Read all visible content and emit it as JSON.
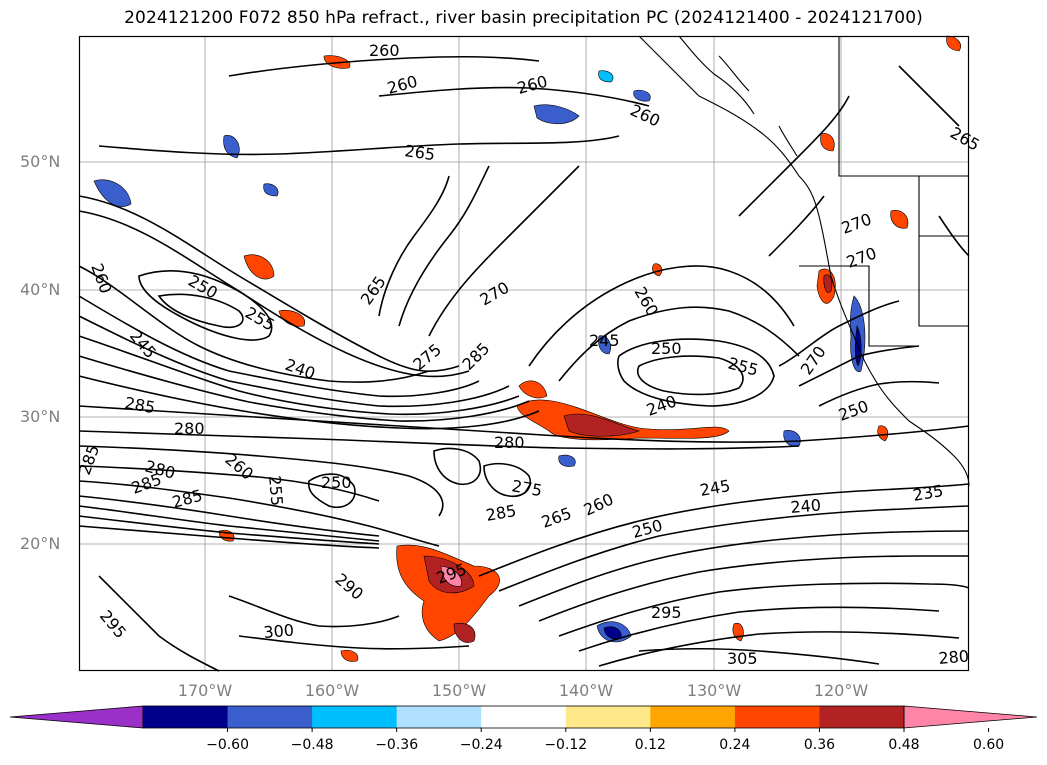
{
  "title": "2024121200 F072 850 hPa refract., river basin precipitation PC (2024121400 - 2024121700)",
  "lat_labels": [
    "50°N",
    "40°N",
    "30°N",
    "20°N"
  ],
  "lon_labels": [
    "170°W",
    "160°W",
    "150°W",
    "140°W",
    "130°W",
    "120°W"
  ],
  "colorbar": {
    "colors": [
      "#9a30c8",
      "#00008b",
      "#3a5fcd",
      "#00bfff",
      "#b0e0ff",
      "#ffffff",
      "#ffe88a",
      "#ffa500",
      "#ff4500",
      "#b22222",
      "#ff85a8"
    ],
    "ticks": [
      "−0.60",
      "−0.48",
      "−0.36",
      "−0.24",
      "−0.12",
      "0.12",
      "0.24",
      "0.36",
      "0.48",
      "0.60"
    ]
  },
  "contour_labels": [
    "260",
    "260",
    "260",
    "260",
    "265",
    "260",
    "250",
    "255",
    "245",
    "240",
    "265",
    "270",
    "260",
    "275",
    "285",
    "245",
    "250",
    "255",
    "240",
    "270",
    "285",
    "280",
    "280",
    "260",
    "250",
    "255",
    "285",
    "285",
    "280",
    "285",
    "275",
    "285",
    "265",
    "260",
    "245",
    "240",
    "250",
    "235",
    "250",
    "290",
    "295",
    "295",
    "300",
    "305",
    "295",
    "280",
    "270",
    "270",
    "265"
  ]
}
